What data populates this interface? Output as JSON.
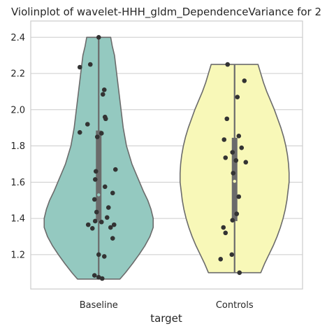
{
  "chart_data": {
    "type": "violin",
    "title": "Violinplot of wavelet-HHH_gldm_DependenceVariance for 2",
    "xlabel": "target",
    "ylabel": "",
    "ylim": [
      1.01,
      2.49
    ],
    "yticks": [
      "1.2",
      "1.4",
      "1.6",
      "1.8",
      "2.0",
      "2.2",
      "2.4"
    ],
    "grid": true,
    "categories": [
      "Baseline",
      "Controls"
    ],
    "colors": [
      "#94c9c0",
      "#f8f8b8"
    ],
    "violins": [
      {
        "name": "Baseline",
        "range": [
          1.065,
          2.4
        ],
        "q1": 1.39,
        "median": 1.53,
        "q3": 1.885,
        "density": [
          [
            1.065,
            0.39
          ],
          [
            1.1,
            0.49
          ],
          [
            1.15,
            0.62
          ],
          [
            1.2,
            0.74
          ],
          [
            1.25,
            0.85
          ],
          [
            1.3,
            0.94
          ],
          [
            1.35,
            1.0
          ],
          [
            1.4,
            1.0
          ],
          [
            1.45,
            0.96
          ],
          [
            1.5,
            0.9
          ],
          [
            1.55,
            0.82
          ],
          [
            1.6,
            0.75
          ],
          [
            1.65,
            0.68
          ],
          [
            1.7,
            0.61
          ],
          [
            1.75,
            0.56
          ],
          [
            1.8,
            0.51
          ],
          [
            1.85,
            0.48
          ],
          [
            1.9,
            0.45
          ],
          [
            1.95,
            0.43
          ],
          [
            2.0,
            0.41
          ],
          [
            2.05,
            0.39
          ],
          [
            2.1,
            0.37
          ],
          [
            2.15,
            0.35
          ],
          [
            2.2,
            0.33
          ],
          [
            2.25,
            0.31
          ],
          [
            2.3,
            0.29
          ],
          [
            2.35,
            0.25
          ],
          [
            2.4,
            0.22
          ]
        ],
        "points": [
          {
            "dx": 0.0,
            "y": 2.4
          },
          {
            "dx": -0.27,
            "y": 2.235
          },
          {
            "dx": -0.12,
            "y": 2.25
          },
          {
            "dx": 0.08,
            "y": 2.11
          },
          {
            "dx": 0.06,
            "y": 2.085
          },
          {
            "dx": 0.09,
            "y": 1.96
          },
          {
            "dx": 0.1,
            "y": 1.95
          },
          {
            "dx": -0.16,
            "y": 1.92
          },
          {
            "dx": -0.27,
            "y": 1.875
          },
          {
            "dx": 0.04,
            "y": 1.87
          },
          {
            "dx": -0.02,
            "y": 1.85
          },
          {
            "dx": 0.24,
            "y": 1.67
          },
          {
            "dx": -0.04,
            "y": 1.66
          },
          {
            "dx": -0.05,
            "y": 1.615
          },
          {
            "dx": 0.09,
            "y": 1.575
          },
          {
            "dx": 0.2,
            "y": 1.54
          },
          {
            "dx": -0.06,
            "y": 1.505
          },
          {
            "dx": 0.14,
            "y": 1.46
          },
          {
            "dx": -0.03,
            "y": 1.435
          },
          {
            "dx": 0.12,
            "y": 1.405
          },
          {
            "dx": -0.05,
            "y": 1.385
          },
          {
            "dx": 0.04,
            "y": 1.38
          },
          {
            "dx": 0.22,
            "y": 1.365
          },
          {
            "dx": -0.15,
            "y": 1.365
          },
          {
            "dx": 0.17,
            "y": 1.35
          },
          {
            "dx": -0.09,
            "y": 1.345
          },
          {
            "dx": 0.2,
            "y": 1.29
          },
          {
            "dx": 0.0,
            "y": 1.2
          },
          {
            "dx": 0.08,
            "y": 1.19
          },
          {
            "dx": -0.06,
            "y": 1.085
          },
          {
            "dx": 0.0,
            "y": 1.075
          },
          {
            "dx": 0.05,
            "y": 1.068
          }
        ]
      },
      {
        "name": "Controls",
        "range": [
          1.1,
          2.25
        ],
        "q1": 1.385,
        "median": 1.605,
        "q3": 1.845,
        "density": [
          [
            1.1,
            0.48
          ],
          [
            1.15,
            0.55
          ],
          [
            1.2,
            0.63
          ],
          [
            1.25,
            0.71
          ],
          [
            1.3,
            0.78
          ],
          [
            1.35,
            0.84
          ],
          [
            1.4,
            0.89
          ],
          [
            1.45,
            0.93
          ],
          [
            1.5,
            0.96
          ],
          [
            1.55,
            0.98
          ],
          [
            1.6,
            1.0
          ],
          [
            1.65,
            1.0
          ],
          [
            1.7,
            0.99
          ],
          [
            1.75,
            0.97
          ],
          [
            1.8,
            0.94
          ],
          [
            1.85,
            0.9
          ],
          [
            1.9,
            0.85
          ],
          [
            1.95,
            0.79
          ],
          [
            2.0,
            0.73
          ],
          [
            2.05,
            0.66
          ],
          [
            2.1,
            0.59
          ],
          [
            2.15,
            0.53
          ],
          [
            2.2,
            0.48
          ],
          [
            2.25,
            0.43
          ]
        ],
        "points": [
          {
            "dx": -0.1,
            "y": 2.25
          },
          {
            "dx": 0.14,
            "y": 2.16
          },
          {
            "dx": 0.04,
            "y": 2.07
          },
          {
            "dx": -0.11,
            "y": 1.95
          },
          {
            "dx": 0.06,
            "y": 1.855
          },
          {
            "dx": -0.15,
            "y": 1.835
          },
          {
            "dx": 0.1,
            "y": 1.79
          },
          {
            "dx": -0.03,
            "y": 1.765
          },
          {
            "dx": -0.13,
            "y": 1.735
          },
          {
            "dx": 0.02,
            "y": 1.72
          },
          {
            "dx": 0.16,
            "y": 1.71
          },
          {
            "dx": -0.02,
            "y": 1.65
          },
          {
            "dx": 0.06,
            "y": 1.52
          },
          {
            "dx": 0.03,
            "y": 1.425
          },
          {
            "dx": -0.03,
            "y": 1.39
          },
          {
            "dx": -0.16,
            "y": 1.35
          },
          {
            "dx": -0.13,
            "y": 1.32
          },
          {
            "dx": -0.04,
            "y": 1.2
          },
          {
            "dx": -0.2,
            "y": 1.175
          },
          {
            "dx": 0.07,
            "y": 1.1
          }
        ]
      }
    ]
  }
}
